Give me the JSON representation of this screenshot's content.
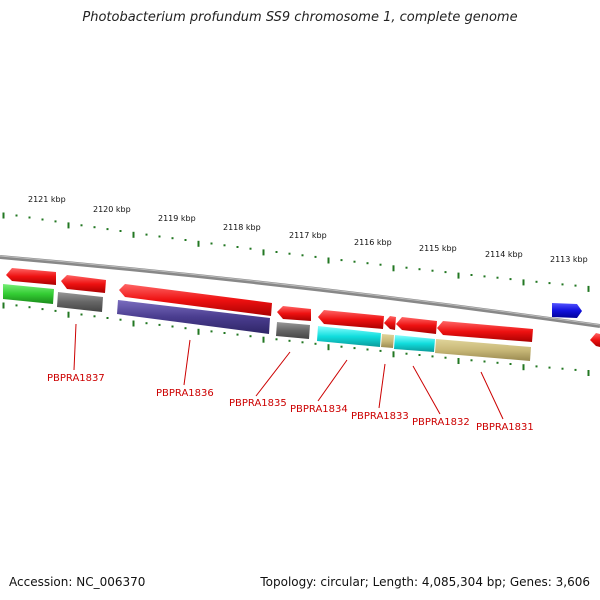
{
  "title": "Photobacterium profundum SS9 chromosome 1, complete genome",
  "footer": {
    "accession": "Accession: NC_006370",
    "topology": "Topology: circular; Length: 4,085,304 bp; Genes: 3,606"
  },
  "colors": {
    "red": "#ee1111",
    "green": "#33cc33",
    "gray": "#666666",
    "navy": "#4a3d8f",
    "cyan": "#11dddd",
    "khaki": "#c8b878",
    "blue": "#1111dd",
    "tick": "#227722",
    "backbone": "#888888",
    "label": "#cc0000"
  },
  "ruler": {
    "unit": "kbp",
    "labels": [
      "2121 kbp",
      "2120 kbp",
      "2119 kbp",
      "2118 kbp",
      "2117 kbp",
      "2116 kbp",
      "2115 kbp",
      "2114 kbp",
      "2113 kbp"
    ]
  },
  "genes": [
    {
      "label": "PBPRA1837"
    },
    {
      "label": "PBPRA1836"
    },
    {
      "label": "PBPRA1835"
    },
    {
      "label": "PBPRA1834"
    },
    {
      "label": "PBPRA1833"
    },
    {
      "label": "PBPRA1832"
    },
    {
      "label": "PBPRA1831"
    }
  ]
}
